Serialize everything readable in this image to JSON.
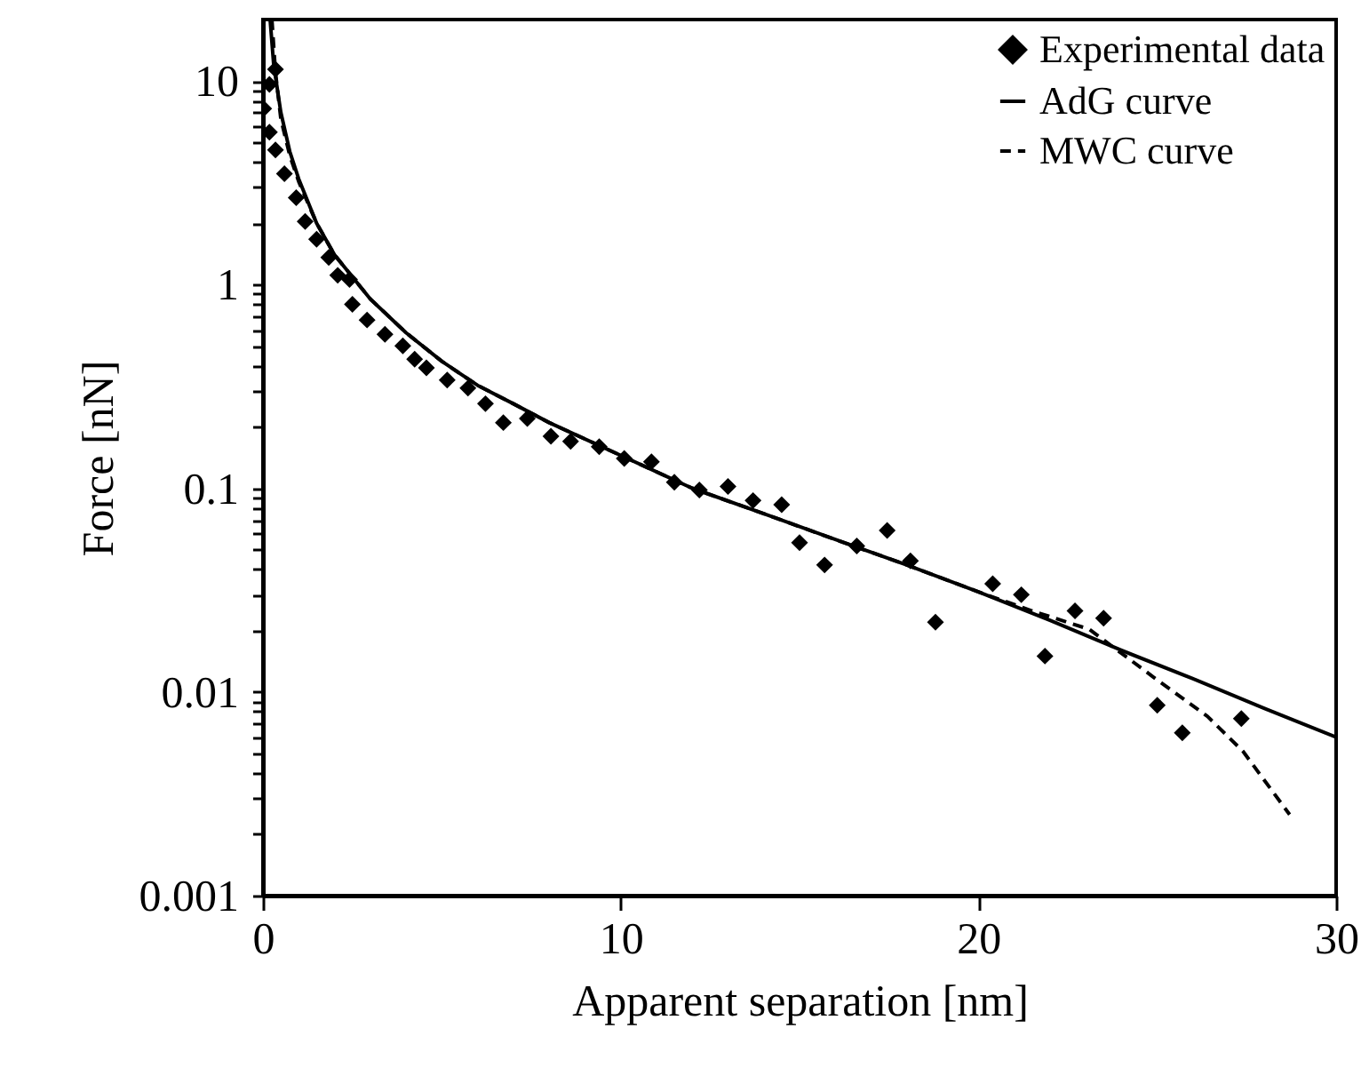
{
  "chart_data": {
    "type": "scatter",
    "xlabel": "Apparent separation [nm]",
    "ylabel": "Force [nN]",
    "log": "y",
    "grid": false,
    "legend": "top right",
    "xlim": [
      0,
      30
    ],
    "xticks": [
      0,
      10,
      20,
      30
    ],
    "ylim": [
      0.001,
      20
    ],
    "yticks": [
      0.001,
      {
        "value": 0.002,
        "label": null
      },
      {
        "value": 0.003,
        "label": null
      },
      {
        "value": 0.004,
        "label": null
      },
      {
        "value": 0.005,
        "label": null
      },
      {
        "value": 0.006,
        "label": null
      },
      {
        "value": 0.007,
        "label": null
      },
      {
        "value": 0.008,
        "label": null
      },
      {
        "value": 0.009,
        "label": null
      },
      0.01,
      {
        "value": 0.02,
        "label": null
      },
      {
        "value": 0.03,
        "label": null
      },
      {
        "value": 0.04,
        "label": null
      },
      {
        "value": 0.05,
        "label": null
      },
      {
        "value": 0.06,
        "label": null
      },
      {
        "value": 0.07,
        "label": null
      },
      {
        "value": 0.08,
        "label": null
      },
      {
        "value": 0.09,
        "label": null
      },
      0.1,
      {
        "value": 0.2,
        "label": null
      },
      {
        "value": 0.3,
        "label": null
      },
      {
        "value": 0.4,
        "label": null
      },
      {
        "value": 0.5,
        "label": null
      },
      {
        "value": 0.6,
        "label": null
      },
      {
        "value": 0.7,
        "label": null
      },
      {
        "value": 0.8,
        "label": null
      },
      {
        "value": 0.9,
        "label": null
      },
      1,
      {
        "value": 2,
        "label": null
      },
      {
        "value": 3,
        "label": null
      },
      {
        "value": 4,
        "label": null
      },
      {
        "value": 5,
        "label": null
      },
      {
        "value": 6,
        "label": null
      },
      {
        "value": 7,
        "label": null
      },
      {
        "value": 8,
        "label": null
      },
      {
        "value": 9,
        "label": null
      },
      10
    ],
    "series": [
      {
        "name": "Experimental data",
        "type": "scatter",
        "marker": "diamond",
        "color": "#000000",
        "x": [
          0.02,
          0.18,
          0.18,
          0.35,
          0.35,
          0.6,
          0.93,
          1.18,
          1.5,
          1.84,
          2.09,
          2.42,
          2.5,
          2.91,
          3.41,
          3.91,
          4.24,
          4.57,
          5.15,
          5.73,
          6.22,
          6.72,
          7.39,
          8.05,
          8.6,
          9.4,
          10.1,
          10.86,
          11.5,
          12.2,
          13.0,
          13.7,
          14.5,
          15.0,
          15.7,
          16.6,
          17.45,
          18.1,
          18.8,
          20.4,
          21.2,
          21.86,
          22.7,
          23.5,
          25.0,
          25.7,
          27.35
        ],
        "values": [
          7.3,
          9.6,
          5.6,
          11.4,
          4.58,
          3.5,
          2.67,
          2.04,
          1.67,
          1.36,
          1.11,
          1.06,
          0.8,
          0.67,
          0.57,
          0.5,
          0.43,
          0.39,
          0.34,
          0.31,
          0.26,
          0.21,
          0.22,
          0.18,
          0.17,
          0.16,
          0.14,
          0.135,
          0.107,
          0.098,
          0.102,
          0.087,
          0.083,
          0.054,
          0.042,
          0.052,
          0.062,
          0.044,
          0.022,
          0.034,
          0.03,
          0.015,
          0.025,
          0.023,
          0.0086,
          0.0063,
          0.0074
        ]
      },
      {
        "name": "AdG curve",
        "type": "line",
        "line_style": "solid",
        "marker": "none",
        "color": "#000000",
        "x": [
          0.2,
          0.3,
          0.5,
          0.75,
          1,
          1.5,
          2,
          3,
          4,
          5,
          6,
          7,
          8,
          10,
          12,
          14,
          16,
          18,
          20,
          22,
          24,
          26,
          28,
          30
        ],
        "values": [
          20,
          12,
          7,
          4.5,
          3.3,
          2.0,
          1.4,
          0.85,
          0.58,
          0.42,
          0.32,
          0.26,
          0.21,
          0.145,
          0.1,
          0.075,
          0.056,
          0.042,
          0.031,
          0.0225,
          0.016,
          0.0116,
          0.0083,
          0.006
        ]
      },
      {
        "name": "MWC curve",
        "type": "line",
        "line_style": "dashed",
        "marker": "none",
        "color": "#000000",
        "x": [
          0.25,
          0.35,
          0.5,
          0.75,
          1,
          1.5,
          2,
          3,
          4,
          5,
          6,
          7,
          8,
          10,
          12,
          14,
          16,
          18,
          20,
          21.5,
          23.1,
          24.9,
          26.4,
          27.4,
          28.7
        ],
        "values": [
          20,
          11,
          6.5,
          4.3,
          3.2,
          2.0,
          1.4,
          0.85,
          0.58,
          0.42,
          0.32,
          0.26,
          0.21,
          0.145,
          0.1,
          0.075,
          0.056,
          0.042,
          0.031,
          0.025,
          0.0203,
          0.0118,
          0.0076,
          0.0051,
          0.0025
        ]
      }
    ]
  }
}
